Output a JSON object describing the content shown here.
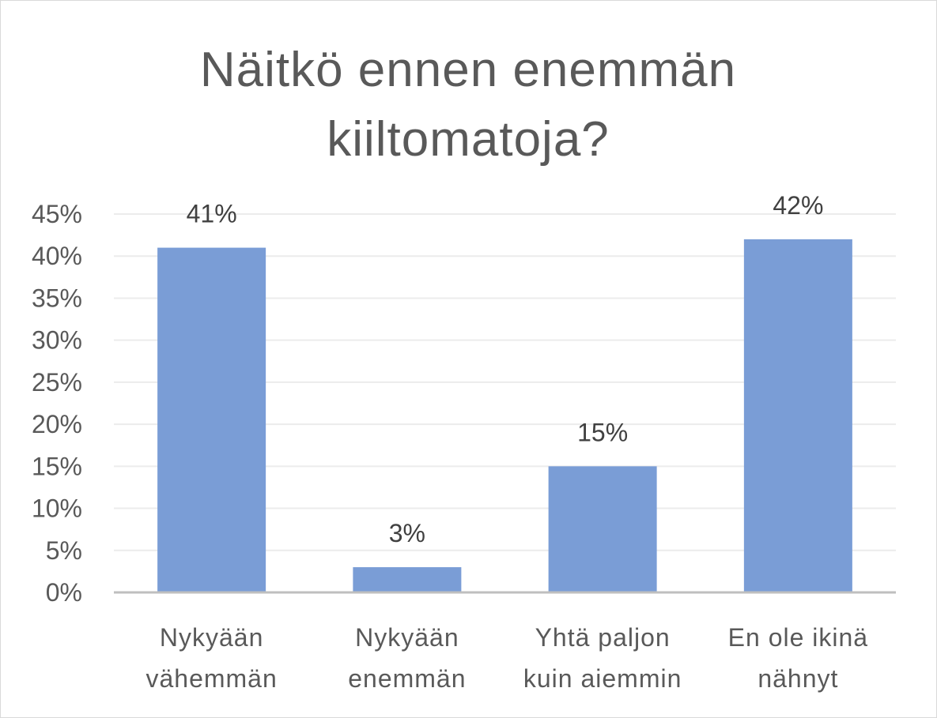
{
  "chart_data": {
    "type": "bar",
    "title_lines": [
      "Näitkö ennen enemmän",
      "kiiltomatoja?"
    ],
    "categories": [
      [
        "Nykyään",
        "vähemmän"
      ],
      [
        "Nykyään",
        "enemmän"
      ],
      [
        "Yhtä paljon",
        "kuin aiemmin"
      ],
      [
        "En ole ikinä",
        "nähnyt"
      ]
    ],
    "values": [
      41,
      3,
      15,
      42
    ],
    "data_labels": [
      "41%",
      "3%",
      "15%",
      "42%"
    ],
    "ylim": [
      0,
      45
    ],
    "ytick_values": [
      0,
      5,
      10,
      15,
      20,
      25,
      30,
      35,
      40,
      45
    ],
    "ytick_labels": [
      "0%",
      "5%",
      "10%",
      "15%",
      "20%",
      "25%",
      "30%",
      "35%",
      "40%",
      "45%"
    ],
    "grid": true,
    "legend": "none",
    "colors": {
      "bar": "#7a9dd6",
      "grid": "#ececec",
      "axis": "#bfbfbf",
      "text": "#595959",
      "label": "#404040"
    }
  }
}
